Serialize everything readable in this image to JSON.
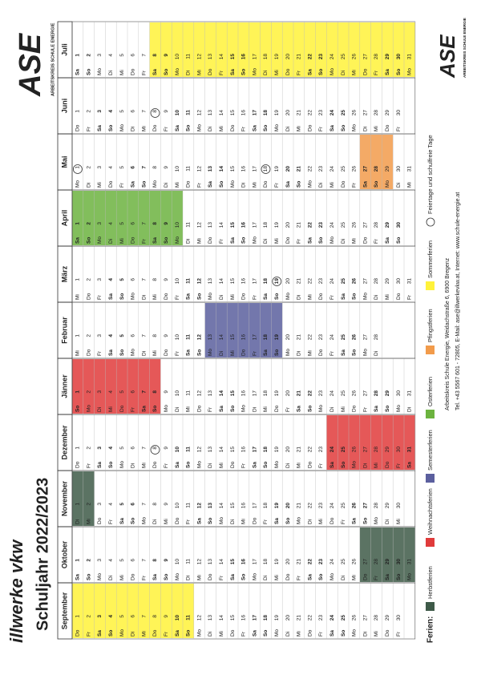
{
  "header": {
    "brand": "illwerke vkw",
    "title": "Schuljahr 2022/2023",
    "logo": "ASE",
    "logo_sub": "ARBEITSKREIS SCHULE ENERGIE"
  },
  "months": [
    {
      "name": "September",
      "weekdays": [
        "Do",
        "Fr",
        "Sa",
        "So",
        "Mo",
        "Di",
        "Mi",
        "Do",
        "Fr",
        "Sa",
        "So",
        "Mo",
        "Di",
        "Mi",
        "Do",
        "Fr",
        "Sa",
        "So",
        "Mo",
        "Di",
        "Mi",
        "Do",
        "Fr",
        "Sa",
        "So",
        "Mo",
        "Di",
        "Mi",
        "Do",
        "Fr"
      ],
      "dates": [
        1,
        2,
        3,
        4,
        5,
        6,
        7,
        8,
        9,
        10,
        11,
        12,
        13,
        14,
        15,
        16,
        17,
        18,
        19,
        20,
        21,
        22,
        23,
        24,
        25,
        26,
        27,
        28,
        29,
        30
      ],
      "shaded": [
        {
          "legend": 5,
          "from": 1,
          "to": 11
        }
      ]
    },
    {
      "name": "Oktober",
      "weekdays": [
        "Sa",
        "So",
        "Mo",
        "Di",
        "Mi",
        "Do",
        "Fr",
        "Sa",
        "So",
        "Mo",
        "Di",
        "Mi",
        "Do",
        "Fr",
        "Sa",
        "So",
        "Mo",
        "Di",
        "Mi",
        "Do",
        "Fr",
        "Sa",
        "So",
        "Mo",
        "Di",
        "Mi",
        "Do",
        "Fr",
        "Sa",
        "So",
        "Mo"
      ],
      "dates": [
        1,
        2,
        3,
        4,
        5,
        6,
        7,
        8,
        9,
        10,
        11,
        12,
        13,
        14,
        15,
        16,
        17,
        18,
        19,
        20,
        21,
        22,
        23,
        24,
        25,
        26,
        27,
        28,
        29,
        30,
        31
      ],
      "shaded": [
        {
          "legend": 0,
          "from": 27,
          "to": 31
        }
      ]
    },
    {
      "name": "November",
      "weekdays": [
        "Di",
        "Mi",
        "Do",
        "Fr",
        "Sa",
        "So",
        "Mo",
        "Di",
        "Mi",
        "Do",
        "Fr",
        "Sa",
        "So",
        "Mo",
        "Di",
        "Mi",
        "Do",
        "Fr",
        "Sa",
        "So",
        "Mo",
        "Di",
        "Mi",
        "Do",
        "Fr",
        "Sa",
        "So",
        "Mo",
        "Di",
        "Mi"
      ],
      "dates": [
        1,
        2,
        3,
        4,
        5,
        6,
        7,
        8,
        9,
        10,
        11,
        12,
        13,
        14,
        15,
        16,
        17,
        18,
        19,
        20,
        21,
        22,
        23,
        24,
        25,
        26,
        27,
        28,
        29,
        30
      ],
      "shaded": [
        {
          "legend": 0,
          "from": 1,
          "to": 2
        }
      ]
    },
    {
      "name": "Dezember",
      "weekdays": [
        "Do",
        "Fr",
        "Sa",
        "So",
        "Mo",
        "Di",
        "Mi",
        "Do",
        "Fr",
        "Sa",
        "So",
        "Mo",
        "Di",
        "Mi",
        "Do",
        "Fr",
        "Sa",
        "So",
        "Mo",
        "Di",
        "Mi",
        "Do",
        "Fr",
        "Sa",
        "So",
        "Mo",
        "Di",
        "Mi",
        "Do",
        "Fr",
        "Sa"
      ],
      "dates": [
        1,
        2,
        3,
        4,
        5,
        6,
        7,
        8,
        9,
        10,
        11,
        12,
        13,
        14,
        15,
        16,
        17,
        18,
        19,
        20,
        21,
        22,
        23,
        24,
        25,
        26,
        27,
        28,
        29,
        30,
        31
      ],
      "shaded": [
        {
          "legend": 1,
          "from": 24,
          "to": 31
        }
      ],
      "circled": [
        8
      ]
    },
    {
      "name": "Jänner",
      "weekdays": [
        "So",
        "Mo",
        "Di",
        "Mi",
        "Do",
        "Fr",
        "Sa",
        "So",
        "Mo",
        "Di",
        "Mi",
        "Do",
        "Fr",
        "Sa",
        "So",
        "Mo",
        "Di",
        "Mi",
        "Do",
        "Fr",
        "Sa",
        "So",
        "Mo",
        "Di",
        "Mi",
        "Do",
        "Fr",
        "Sa",
        "So",
        "Mo",
        "Di"
      ],
      "dates": [
        1,
        2,
        3,
        4,
        5,
        6,
        7,
        8,
        9,
        10,
        11,
        12,
        13,
        14,
        15,
        16,
        17,
        18,
        19,
        20,
        21,
        22,
        23,
        24,
        25,
        26,
        27,
        28,
        29,
        30,
        31
      ],
      "shaded": [
        {
          "legend": 1,
          "from": 1,
          "to": 8
        }
      ]
    },
    {
      "name": "Februar",
      "weekdays": [
        "Mi",
        "Do",
        "Fr",
        "Sa",
        "So",
        "Mo",
        "Di",
        "Mi",
        "Do",
        "Fr",
        "Sa",
        "So",
        "Mo",
        "Di",
        "Mi",
        "Do",
        "Fr",
        "Sa",
        "So",
        "Mo",
        "Di",
        "Mi",
        "Do",
        "Fr",
        "Sa",
        "So",
        "Mo",
        "Di"
      ],
      "dates": [
        1,
        2,
        3,
        4,
        5,
        6,
        7,
        8,
        9,
        10,
        11,
        12,
        13,
        14,
        15,
        16,
        17,
        18,
        19,
        20,
        21,
        22,
        23,
        24,
        25,
        26,
        27,
        28
      ],
      "shaded": [
        {
          "legend": 2,
          "from": 13,
          "to": 19
        }
      ]
    },
    {
      "name": "März",
      "weekdays": [
        "Mi",
        "Do",
        "Fr",
        "Sa",
        "So",
        "Mo",
        "Di",
        "Mi",
        "Do",
        "Fr",
        "Sa",
        "So",
        "Mo",
        "Di",
        "Mi",
        "Do",
        "Fr",
        "Sa",
        "So",
        "Mo",
        "Di",
        "Mi",
        "Do",
        "Fr",
        "Sa",
        "So",
        "Mo",
        "Di",
        "Mi",
        "Do",
        "Fr"
      ],
      "dates": [
        1,
        2,
        3,
        4,
        5,
        6,
        7,
        8,
        9,
        10,
        11,
        12,
        13,
        14,
        15,
        16,
        17,
        18,
        19,
        20,
        21,
        22,
        23,
        24,
        25,
        26,
        27,
        28,
        29,
        30,
        31
      ],
      "circled": [
        19
      ]
    },
    {
      "name": "April",
      "weekdays": [
        "Sa",
        "So",
        "Mo",
        "Di",
        "Mi",
        "Do",
        "Fr",
        "Sa",
        "So",
        "Mo",
        "Di",
        "Mi",
        "Do",
        "Fr",
        "Sa",
        "So",
        "Mo",
        "Di",
        "Mi",
        "Do",
        "Fr",
        "Sa",
        "So",
        "Mo",
        "Di",
        "Mi",
        "Do",
        "Fr",
        "Sa",
        "So"
      ],
      "dates": [
        1,
        2,
        3,
        4,
        5,
        6,
        7,
        8,
        9,
        10,
        11,
        12,
        13,
        14,
        15,
        16,
        17,
        18,
        19,
        20,
        21,
        22,
        23,
        24,
        25,
        26,
        27,
        28,
        29,
        30
      ],
      "shaded": [
        {
          "legend": 3,
          "from": 1,
          "to": 10
        }
      ]
    },
    {
      "name": "Mai",
      "weekdays": [
        "Mo",
        "Di",
        "Mi",
        "Do",
        "Fr",
        "Sa",
        "So",
        "Mo",
        "Di",
        "Mi",
        "Do",
        "Fr",
        "Sa",
        "So",
        "Mo",
        "Di",
        "Mi",
        "Do",
        "Fr",
        "Sa",
        "So",
        "Mo",
        "Di",
        "Mi",
        "Do",
        "Fr",
        "Sa",
        "So",
        "Mo",
        "Di",
        "Mi"
      ],
      "dates": [
        1,
        2,
        3,
        4,
        5,
        6,
        7,
        8,
        9,
        10,
        11,
        12,
        13,
        14,
        15,
        16,
        17,
        18,
        19,
        20,
        21,
        22,
        23,
        24,
        25,
        26,
        27,
        28,
        29,
        30,
        31
      ],
      "shaded": [
        {
          "legend": 4,
          "from": 27,
          "to": 29
        }
      ],
      "circled": [
        1,
        18
      ]
    },
    {
      "name": "Juni",
      "weekdays": [
        "Do",
        "Fr",
        "Sa",
        "So",
        "Mo",
        "Di",
        "Mi",
        "Do",
        "Fr",
        "Sa",
        "So",
        "Mo",
        "Di",
        "Mi",
        "Do",
        "Fr",
        "Sa",
        "So",
        "Mo",
        "Di",
        "Mi",
        "Do",
        "Fr",
        "Sa",
        "So",
        "Mo",
        "Di",
        "Mi",
        "Do",
        "Fr"
      ],
      "dates": [
        1,
        2,
        3,
        4,
        5,
        6,
        7,
        8,
        9,
        10,
        11,
        12,
        13,
        14,
        15,
        16,
        17,
        18,
        19,
        20,
        21,
        22,
        23,
        24,
        25,
        26,
        27,
        28,
        29,
        30
      ],
      "circled": [
        8
      ]
    },
    {
      "name": "Juli",
      "weekdays": [
        "Sa",
        "So",
        "Mo",
        "Di",
        "Mi",
        "Do",
        "Fr",
        "Sa",
        "So",
        "Mo",
        "Di",
        "Mi",
        "Do",
        "Fr",
        "Sa",
        "So",
        "Mo",
        "Di",
        "Mi",
        "Do",
        "Fr",
        "Sa",
        "So",
        "Mo",
        "Di",
        "Mi",
        "Do",
        "Fr",
        "Sa",
        "So",
        "Mo"
      ],
      "dates": [
        1,
        2,
        3,
        4,
        5,
        6,
        7,
        8,
        9,
        10,
        11,
        12,
        13,
        14,
        15,
        16,
        17,
        18,
        19,
        20,
        21,
        22,
        23,
        24,
        25,
        26,
        27,
        28,
        29,
        30,
        31
      ],
      "shaded": [
        {
          "legend": 5,
          "from": 8,
          "to": 31
        }
      ]
    }
  ],
  "legend": {
    "label": "Ferien:",
    "items": [
      {
        "name": "Herbstferien",
        "color": "#3e5a48"
      },
      {
        "name": "Weihnachtsferien",
        "color": "#e03b3b"
      },
      {
        "name": "Semesterferien",
        "color": "#5b5f9e"
      },
      {
        "name": "Osterferien",
        "color": "#6cb33f"
      },
      {
        "name": "Pfingstferien",
        "color": "#f29b4b"
      },
      {
        "name": "Sommerferien",
        "color": "#fff23a"
      }
    ],
    "marker": "Feiertage und schulfreie Tage"
  },
  "footer": {
    "address": "Arbeitskreis Schule Energie, Weidachstraße 6, 6900 Bregenz",
    "contact": "Tel. +43 5567 601 - 72805, E-Mail: ase@illwerkevkw.at, Internet: www.schule-energie.at"
  }
}
